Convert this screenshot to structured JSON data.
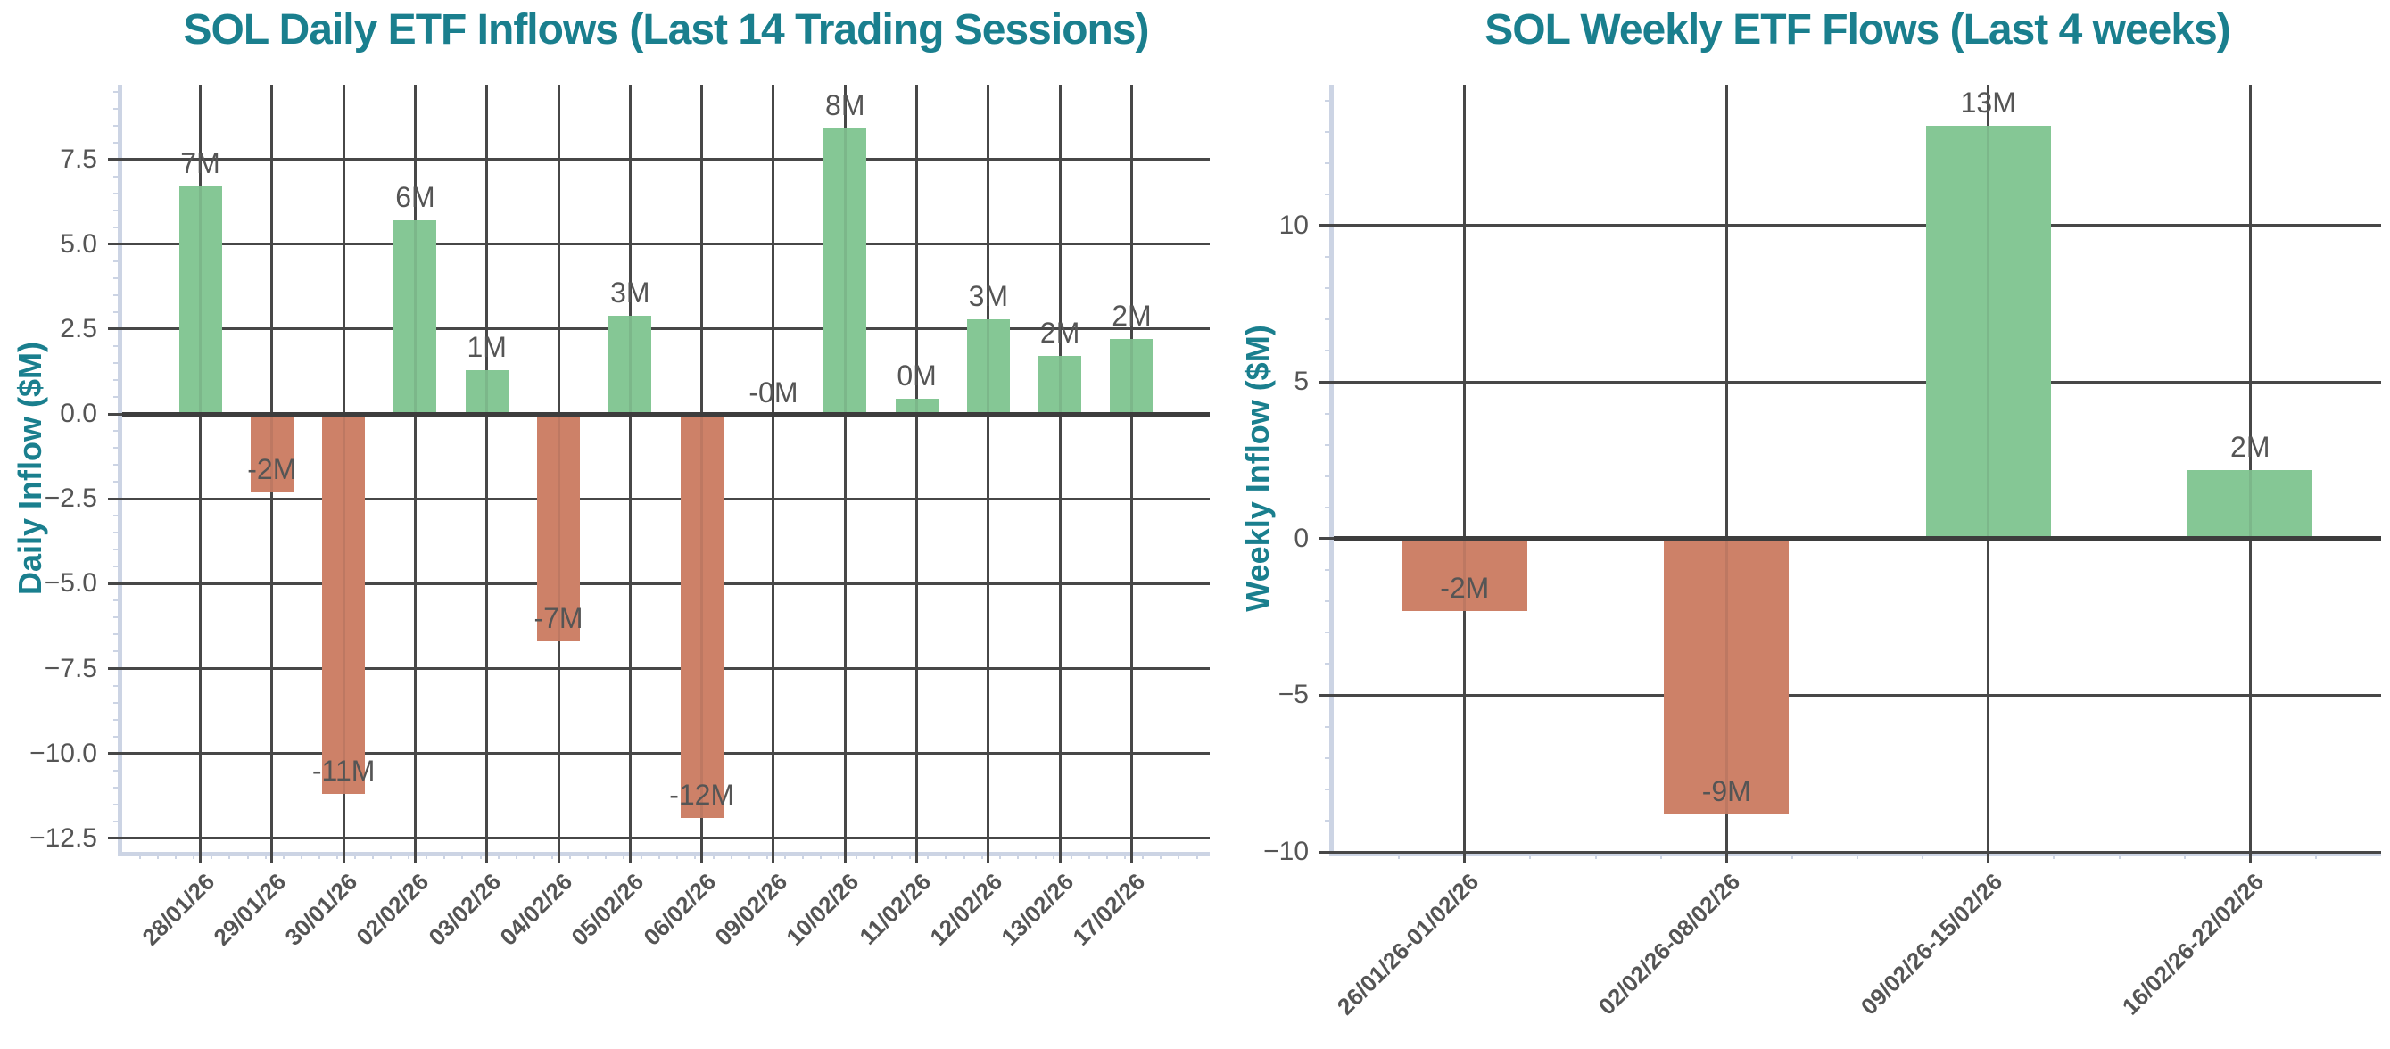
{
  "page": {
    "background": "#ffffff"
  },
  "colors": {
    "title": "#1a7f8e",
    "axis_label": "#1a7f8e",
    "grid": "#474747",
    "zero_line": "#3d3d3d",
    "spine": "#ccd4e4",
    "tick_label": "#555555",
    "value_label": "#555555",
    "positive_bar": "#85c795",
    "negative_bar": "#cd8168"
  },
  "chart_data": [
    {
      "type": "bar",
      "title": "SOL Daily ETF Inflows (Last 14 Trading Sessions)",
      "ylabel": "Daily Inflow ($M)",
      "xlabel": "",
      "legend_position": "none",
      "grid": true,
      "categories": [
        "28/01/26",
        "29/01/26",
        "30/01/26",
        "02/02/26",
        "03/02/26",
        "04/02/26",
        "05/02/26",
        "06/02/26",
        "09/02/26",
        "10/02/26",
        "11/02/26",
        "12/02/26",
        "13/02/26",
        "17/02/26"
      ],
      "values": [
        6.7,
        -2.3,
        -11.2,
        5.7,
        1.3,
        -6.7,
        2.9,
        -11.9,
        -0.05,
        8.4,
        0.45,
        2.8,
        1.7,
        2.2
      ],
      "bar_labels": [
        "7M",
        "-2M",
        "-11M",
        "6M",
        "1M",
        "-7M",
        "3M",
        "-12M",
        "-0M",
        "8M",
        "0M",
        "3M",
        "2M",
        "2M"
      ],
      "ytick_values": [
        7.5,
        5.0,
        2.5,
        0.0,
        -2.5,
        -5.0,
        -7.5,
        -10.0,
        -12.5
      ],
      "ytick_labels": [
        "7.5",
        "5.0",
        "2.5",
        "0.0",
        "−2.5",
        "−5.0",
        "−7.5",
        "−10.0",
        "−12.5"
      ],
      "ylim": [
        -12.9,
        9.7
      ]
    },
    {
      "type": "bar",
      "title": "SOL Weekly ETF Flows (Last 4 weeks)",
      "ylabel": "Weekly Inflow ($M)",
      "xlabel": "",
      "legend_position": "none",
      "grid": true,
      "categories": [
        "26/01/26-01/02/26",
        "02/02/26-08/02/26",
        "09/02/26-15/02/26",
        "16/02/26-22/02/26"
      ],
      "values": [
        -2.3,
        -8.8,
        13.2,
        2.2
      ],
      "bar_labels": [
        "-2M",
        "-9M",
        "13M",
        "2M"
      ],
      "ytick_values": [
        10,
        5,
        0,
        -5,
        -10
      ],
      "ytick_labels": [
        "10",
        "5",
        "0",
        "−5",
        "−10"
      ],
      "ylim": [
        -10,
        14.5
      ]
    }
  ]
}
